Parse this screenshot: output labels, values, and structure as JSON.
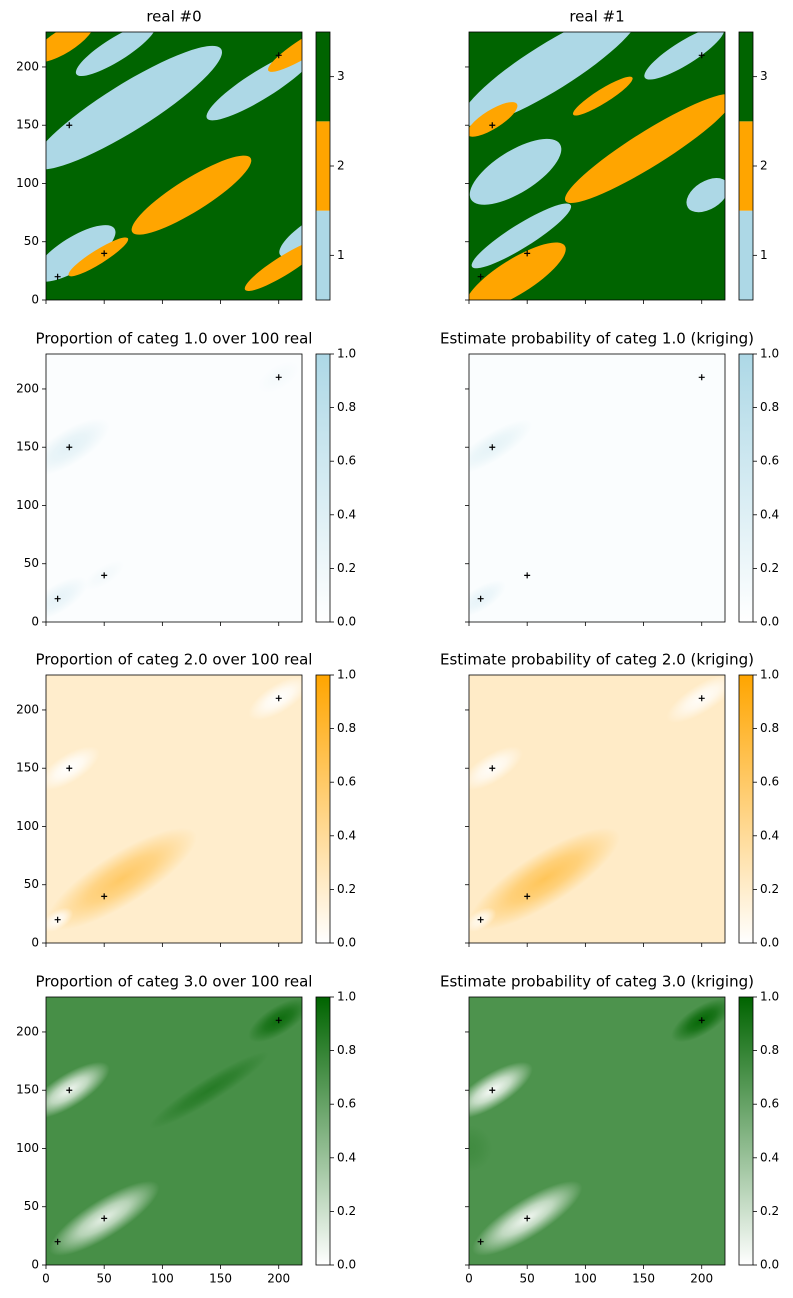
{
  "chart_data": [
    {
      "type": "heatmap",
      "title": "real #0",
      "xlim": [
        0,
        220
      ],
      "ylim": [
        0,
        230
      ],
      "xticks": [
        0,
        50,
        100,
        150,
        200
      ],
      "yticks": [
        0,
        50,
        100,
        150,
        200
      ],
      "colorbar": {
        "lim": [
          0.5,
          3.5
        ],
        "ticks": [
          1,
          2,
          3
        ],
        "colors": [
          "#add8e6",
          "#ffa500",
          "#006400"
        ]
      },
      "points": {
        "x": [
          10,
          50,
          20,
          200
        ],
        "y": [
          20,
          40,
          150,
          210
        ],
        "color": "#000000"
      }
    },
    {
      "type": "heatmap",
      "title": "real #1",
      "xlim": [
        0,
        220
      ],
      "ylim": [
        0,
        230
      ],
      "xticks": [
        0,
        50,
        100,
        150,
        200
      ],
      "yticks": [
        0,
        50,
        100,
        150,
        200
      ],
      "colorbar": {
        "lim": [
          0.5,
          3.5
        ],
        "ticks": [
          1,
          2,
          3
        ],
        "colors": [
          "#add8e6",
          "#ffa500",
          "#006400"
        ]
      },
      "points": {
        "x": [
          10,
          50,
          20,
          200
        ],
        "y": [
          20,
          40,
          150,
          210
        ],
        "color": "#000000"
      }
    },
    {
      "type": "heatmap",
      "title": "Proportion of categ 1.0 over 100 real",
      "xlim": [
        0,
        220
      ],
      "ylim": [
        0,
        230
      ],
      "xticks": [
        0,
        50,
        100,
        150,
        200
      ],
      "yticks": [
        0,
        50,
        100,
        150,
        200
      ],
      "colorbar": {
        "lim": [
          0,
          1
        ],
        "ticks": [
          {
            "value": 0,
            "label": "0.0"
          },
          {
            "value": 0.2,
            "label": "0.2"
          },
          {
            "value": 0.4,
            "label": "0.4"
          },
          {
            "value": 0.6,
            "label": "0.6"
          },
          {
            "value": 0.8,
            "label": "0.8"
          },
          {
            "value": 1,
            "label": "1.0"
          }
        ],
        "cmap": [
          "#ffffff",
          "#add8e6"
        ]
      },
      "points": {
        "x": [
          10,
          50,
          20,
          200
        ],
        "y": [
          20,
          40,
          150,
          210
        ],
        "color": "#000000"
      }
    },
    {
      "type": "heatmap",
      "title": "Estimate probability of categ 1.0 (kriging)",
      "xlim": [
        0,
        220
      ],
      "ylim": [
        0,
        230
      ],
      "xticks": [
        0,
        50,
        100,
        150,
        200
      ],
      "yticks": [
        0,
        50,
        100,
        150,
        200
      ],
      "colorbar": {
        "lim": [
          0,
          1
        ],
        "ticks": [
          {
            "value": 0,
            "label": "0.0"
          },
          {
            "value": 0.2,
            "label": "0.2"
          },
          {
            "value": 0.4,
            "label": "0.4"
          },
          {
            "value": 0.6,
            "label": "0.6"
          },
          {
            "value": 0.8,
            "label": "0.8"
          },
          {
            "value": 1,
            "label": "1.0"
          }
        ],
        "cmap": [
          "#ffffff",
          "#add8e6"
        ]
      },
      "points": {
        "x": [
          10,
          50,
          20,
          200
        ],
        "y": [
          20,
          40,
          150,
          210
        ],
        "color": "#000000"
      }
    },
    {
      "type": "heatmap",
      "title": "Proportion of categ 2.0 over 100 real",
      "xlim": [
        0,
        220
      ],
      "ylim": [
        0,
        230
      ],
      "xticks": [
        0,
        50,
        100,
        150,
        200
      ],
      "yticks": [
        0,
        50,
        100,
        150,
        200
      ],
      "colorbar": {
        "lim": [
          0,
          1
        ],
        "ticks": [
          {
            "value": 0,
            "label": "0.0"
          },
          {
            "value": 0.2,
            "label": "0.2"
          },
          {
            "value": 0.4,
            "label": "0.4"
          },
          {
            "value": 0.6,
            "label": "0.6"
          },
          {
            "value": 0.8,
            "label": "0.8"
          },
          {
            "value": 1,
            "label": "1.0"
          }
        ],
        "cmap": [
          "#ffffff",
          "#ffa500"
        ]
      },
      "points": {
        "x": [
          10,
          50,
          20,
          200
        ],
        "y": [
          20,
          40,
          150,
          210
        ],
        "color": "#000000"
      }
    },
    {
      "type": "heatmap",
      "title": "Estimate probability of categ 2.0 (kriging)",
      "xlim": [
        0,
        220
      ],
      "ylim": [
        0,
        230
      ],
      "xticks": [
        0,
        50,
        100,
        150,
        200
      ],
      "yticks": [
        0,
        50,
        100,
        150,
        200
      ],
      "colorbar": {
        "lim": [
          0,
          1
        ],
        "ticks": [
          {
            "value": 0,
            "label": "0.0"
          },
          {
            "value": 0.2,
            "label": "0.2"
          },
          {
            "value": 0.4,
            "label": "0.4"
          },
          {
            "value": 0.6,
            "label": "0.6"
          },
          {
            "value": 0.8,
            "label": "0.8"
          },
          {
            "value": 1,
            "label": "1.0"
          }
        ],
        "cmap": [
          "#ffffff",
          "#ffa500"
        ]
      },
      "points": {
        "x": [
          10,
          50,
          20,
          200
        ],
        "y": [
          20,
          40,
          150,
          210
        ],
        "color": "#000000"
      }
    },
    {
      "type": "heatmap",
      "title": "Proportion of categ 3.0 over 100 real",
      "xlim": [
        0,
        220
      ],
      "ylim": [
        0,
        230
      ],
      "xticks": [
        0,
        50,
        100,
        150,
        200
      ],
      "yticks": [
        0,
        50,
        100,
        150,
        200
      ],
      "colorbar": {
        "lim": [
          0,
          1
        ],
        "ticks": [
          {
            "value": 0,
            "label": "0.0"
          },
          {
            "value": 0.2,
            "label": "0.2"
          },
          {
            "value": 0.4,
            "label": "0.4"
          },
          {
            "value": 0.6,
            "label": "0.6"
          },
          {
            "value": 0.8,
            "label": "0.8"
          },
          {
            "value": 1,
            "label": "1.0"
          }
        ],
        "cmap": [
          "#ffffff",
          "#006400"
        ]
      },
      "points": {
        "x": [
          10,
          50,
          20,
          200
        ],
        "y": [
          20,
          40,
          150,
          210
        ],
        "color": "#000000"
      }
    },
    {
      "type": "heatmap",
      "title": "Estimate probability of categ 3.0 (kriging)",
      "xlim": [
        0,
        220
      ],
      "ylim": [
        0,
        230
      ],
      "xticks": [
        0,
        50,
        100,
        150,
        200
      ],
      "yticks": [
        0,
        50,
        100,
        150,
        200
      ],
      "colorbar": {
        "lim": [
          0,
          1
        ],
        "ticks": [
          {
            "value": 0,
            "label": "0.0"
          },
          {
            "value": 0.2,
            "label": "0.2"
          },
          {
            "value": 0.4,
            "label": "0.4"
          },
          {
            "value": 0.6,
            "label": "0.6"
          },
          {
            "value": 0.8,
            "label": "0.8"
          },
          {
            "value": 1,
            "label": "1.0"
          }
        ],
        "cmap": [
          "#ffffff",
          "#006400"
        ]
      },
      "points": {
        "x": [
          10,
          50,
          20,
          200
        ],
        "y": [
          20,
          40,
          150,
          210
        ],
        "color": "#000000"
      }
    }
  ]
}
